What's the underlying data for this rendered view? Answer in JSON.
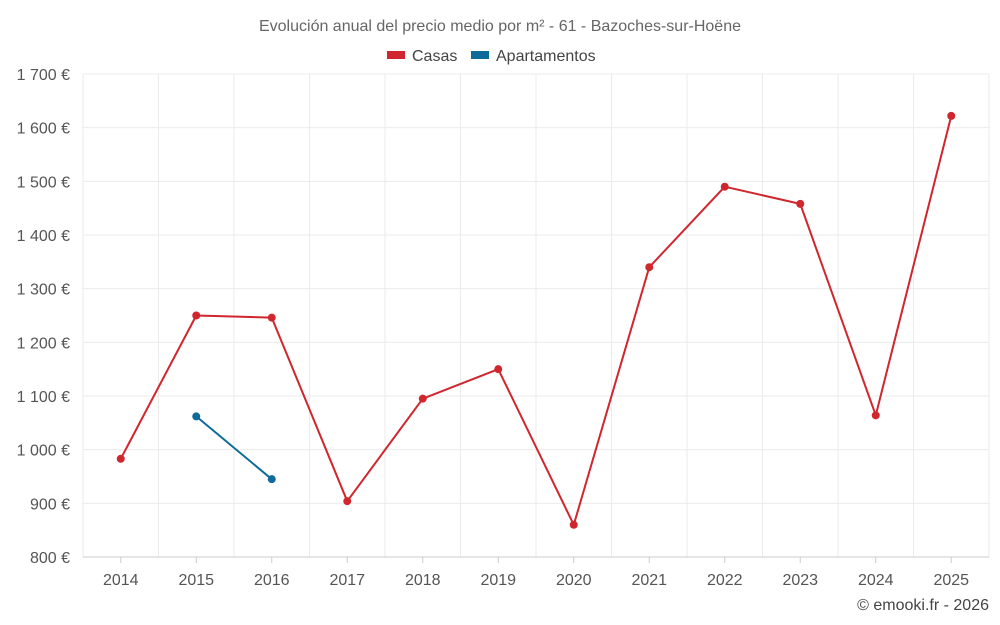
{
  "chart_data": {
    "type": "line",
    "title": "Evolución anual del precio medio por m² - 61 - Bazoches-sur-Hoëne",
    "categories": [
      "2014",
      "2015",
      "2016",
      "2017",
      "2018",
      "2019",
      "2020",
      "2021",
      "2022",
      "2023",
      "2024",
      "2025"
    ],
    "series": [
      {
        "name": "Casas",
        "color": "#d0262d",
        "values": [
          983,
          1250,
          1246,
          904,
          1095,
          1150,
          860,
          1340,
          1490,
          1458,
          1064,
          1622
        ]
      },
      {
        "name": "Apartamentos",
        "color": "#0d6a99",
        "values": [
          null,
          1062,
          945,
          null,
          null,
          null,
          null,
          null,
          null,
          null,
          null,
          null
        ]
      }
    ],
    "ylim": [
      800,
      1700
    ],
    "yticks": [
      800,
      900,
      1000,
      1100,
      1200,
      1300,
      1400,
      1500,
      1600,
      1700
    ],
    "ytick_labels": [
      "800 €",
      "900 €",
      "1 000 €",
      "1 100 €",
      "1 200 €",
      "1 300 €",
      "1 400 €",
      "1 500 €",
      "1 600 €",
      "1 700 €"
    ],
    "legend_position": "top-center",
    "grid": true,
    "credit": "© emooki.fr - 2026"
  }
}
